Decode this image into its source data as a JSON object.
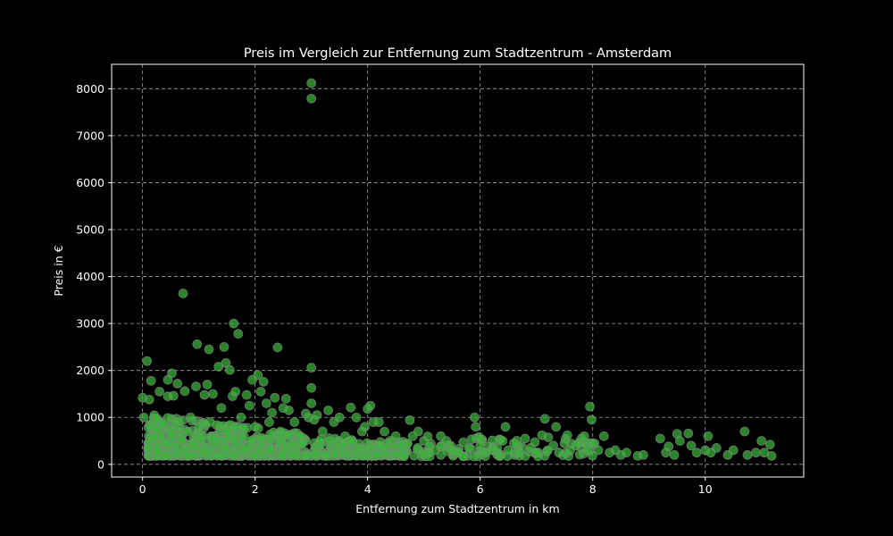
{
  "chart_data": {
    "type": "scatter",
    "title": "Preis im Vergleich zur Entfernung zum Stadtzentrum - Amsterdam",
    "xlabel": "Entfernung zum Stadtzentrum in km",
    "ylabel": "Preis in €",
    "xlim": [
      -0.55,
      11.75
    ],
    "ylim": [
      -270,
      8520
    ],
    "xticks": [
      0,
      2,
      4,
      6,
      8,
      10
    ],
    "yticks": [
      0,
      1000,
      2000,
      3000,
      4000,
      5000,
      6000,
      7000,
      8000
    ],
    "grid": true,
    "background": "#000000",
    "colors": {
      "point_fill": "#3cb53c",
      "point_edge": "#808080",
      "grid": "#a0a0a0",
      "axis": "#ffffff"
    },
    "series": [
      {
        "points": [
          [
            0,
            1420
          ],
          [
            0.02,
            1000
          ],
          [
            0.08,
            2200
          ],
          [
            0.12,
            1380
          ],
          [
            0.15,
            1780
          ],
          [
            0.1,
            350
          ],
          [
            0.2,
            560
          ],
          [
            0.25,
            720
          ],
          [
            0.3,
            1550
          ],
          [
            0.35,
            880
          ],
          [
            0.4,
            470
          ],
          [
            0.45,
            1450
          ],
          [
            0.45,
            1800
          ],
          [
            0.5,
            620
          ],
          [
            0.52,
            1940
          ],
          [
            0.55,
            1460
          ],
          [
            0.6,
            380
          ],
          [
            0.62,
            1720
          ],
          [
            0.65,
            900
          ],
          [
            0.7,
            520
          ],
          [
            0.72,
            3640
          ],
          [
            0.75,
            1560
          ],
          [
            0.8,
            700
          ],
          [
            0.85,
            1000
          ],
          [
            0.9,
            450
          ],
          [
            0.95,
            1660
          ],
          [
            0.97,
            2560
          ],
          [
            1.0,
            800
          ],
          [
            1.05,
            600
          ],
          [
            1.1,
            1480
          ],
          [
            1.15,
            1700
          ],
          [
            1.18,
            2450
          ],
          [
            1.2,
            900
          ],
          [
            1.25,
            1500
          ],
          [
            1.3,
            550
          ],
          [
            1.35,
            2080
          ],
          [
            1.4,
            1200
          ],
          [
            1.45,
            2500
          ],
          [
            1.48,
            2160
          ],
          [
            1.5,
            700
          ],
          [
            1.55,
            2010
          ],
          [
            1.6,
            1450
          ],
          [
            1.62,
            3000
          ],
          [
            1.65,
            1550
          ],
          [
            1.7,
            2780
          ],
          [
            1.75,
            1000
          ],
          [
            1.8,
            600
          ],
          [
            1.85,
            1480
          ],
          [
            1.9,
            1250
          ],
          [
            1.95,
            1800
          ],
          [
            2.0,
            800
          ],
          [
            2.05,
            1900
          ],
          [
            2.1,
            1550
          ],
          [
            2.15,
            1760
          ],
          [
            2.2,
            1300
          ],
          [
            2.25,
            900
          ],
          [
            2.3,
            1100
          ],
          [
            2.35,
            1420
          ],
          [
            2.4,
            2490
          ],
          [
            2.45,
            700
          ],
          [
            2.5,
            1200
          ],
          [
            2.55,
            1400
          ],
          [
            2.6,
            1150
          ],
          [
            2.7,
            900
          ],
          [
            2.8,
            600
          ],
          [
            2.9,
            1080
          ],
          [
            2.95,
            1000
          ],
          [
            3.0,
            8120
          ],
          [
            3.0,
            7790
          ],
          [
            3.0,
            2060
          ],
          [
            3.0,
            1630
          ],
          [
            3.0,
            1300
          ],
          [
            3.05,
            950
          ],
          [
            3.1,
            1050
          ],
          [
            3.2,
            700
          ],
          [
            3.3,
            1150
          ],
          [
            3.4,
            900
          ],
          [
            3.5,
            1000
          ],
          [
            3.6,
            600
          ],
          [
            3.7,
            1210
          ],
          [
            3.8,
            1000
          ],
          [
            3.9,
            700
          ],
          [
            3.95,
            800
          ],
          [
            4.0,
            1180
          ],
          [
            4.05,
            1250
          ],
          [
            4.1,
            900
          ],
          [
            4.2,
            900
          ],
          [
            4.3,
            700
          ],
          [
            4.4,
            500
          ],
          [
            4.5,
            600
          ],
          [
            4.6,
            400
          ],
          [
            4.75,
            940
          ],
          [
            4.8,
            600
          ],
          [
            4.9,
            700
          ],
          [
            5.0,
            500
          ],
          [
            5.1,
            380
          ],
          [
            5.2,
            300
          ],
          [
            5.3,
            600
          ],
          [
            5.4,
            500
          ],
          [
            5.5,
            300
          ],
          [
            5.6,
            250
          ],
          [
            5.7,
            470
          ],
          [
            5.8,
            350
          ],
          [
            5.9,
            1000
          ],
          [
            5.92,
            800
          ],
          [
            6.0,
            400
          ],
          [
            6.1,
            250
          ],
          [
            6.2,
            300
          ],
          [
            6.3,
            350
          ],
          [
            6.4,
            500
          ],
          [
            6.45,
            800
          ],
          [
            6.5,
            300
          ],
          [
            6.6,
            450
          ],
          [
            6.7,
            250
          ],
          [
            6.8,
            550
          ],
          [
            6.9,
            350
          ],
          [
            7.0,
            250
          ],
          [
            7.1,
            620
          ],
          [
            7.15,
            970
          ],
          [
            7.2,
            300
          ],
          [
            7.3,
            400
          ],
          [
            7.35,
            800
          ],
          [
            7.4,
            250
          ],
          [
            7.5,
            450
          ],
          [
            7.55,
            620
          ],
          [
            7.6,
            300
          ],
          [
            7.7,
            400
          ],
          [
            7.8,
            550
          ],
          [
            7.85,
            600
          ],
          [
            7.9,
            300
          ],
          [
            7.95,
            1230
          ],
          [
            7.98,
            950
          ],
          [
            8.0,
            450
          ],
          [
            8.1,
            300
          ],
          [
            8.2,
            600
          ],
          [
            8.3,
            250
          ],
          [
            8.4,
            300
          ],
          [
            8.5,
            200
          ],
          [
            8.6,
            250
          ],
          [
            8.8,
            180
          ],
          [
            8.9,
            200
          ],
          [
            9.2,
            550
          ],
          [
            9.3,
            250
          ],
          [
            9.35,
            380
          ],
          [
            9.45,
            200
          ],
          [
            9.5,
            650
          ],
          [
            9.55,
            500
          ],
          [
            9.7,
            660
          ],
          [
            9.75,
            400
          ],
          [
            9.85,
            250
          ],
          [
            10.0,
            300
          ],
          [
            10.05,
            600
          ],
          [
            10.1,
            250
          ],
          [
            10.2,
            350
          ],
          [
            10.4,
            200
          ],
          [
            10.5,
            300
          ],
          [
            10.7,
            700
          ],
          [
            10.75,
            200
          ],
          [
            10.9,
            250
          ],
          [
            11.0,
            500
          ],
          [
            11.05,
            250
          ],
          [
            11.15,
            420
          ],
          [
            11.18,
            180
          ]
        ]
      }
    ]
  }
}
